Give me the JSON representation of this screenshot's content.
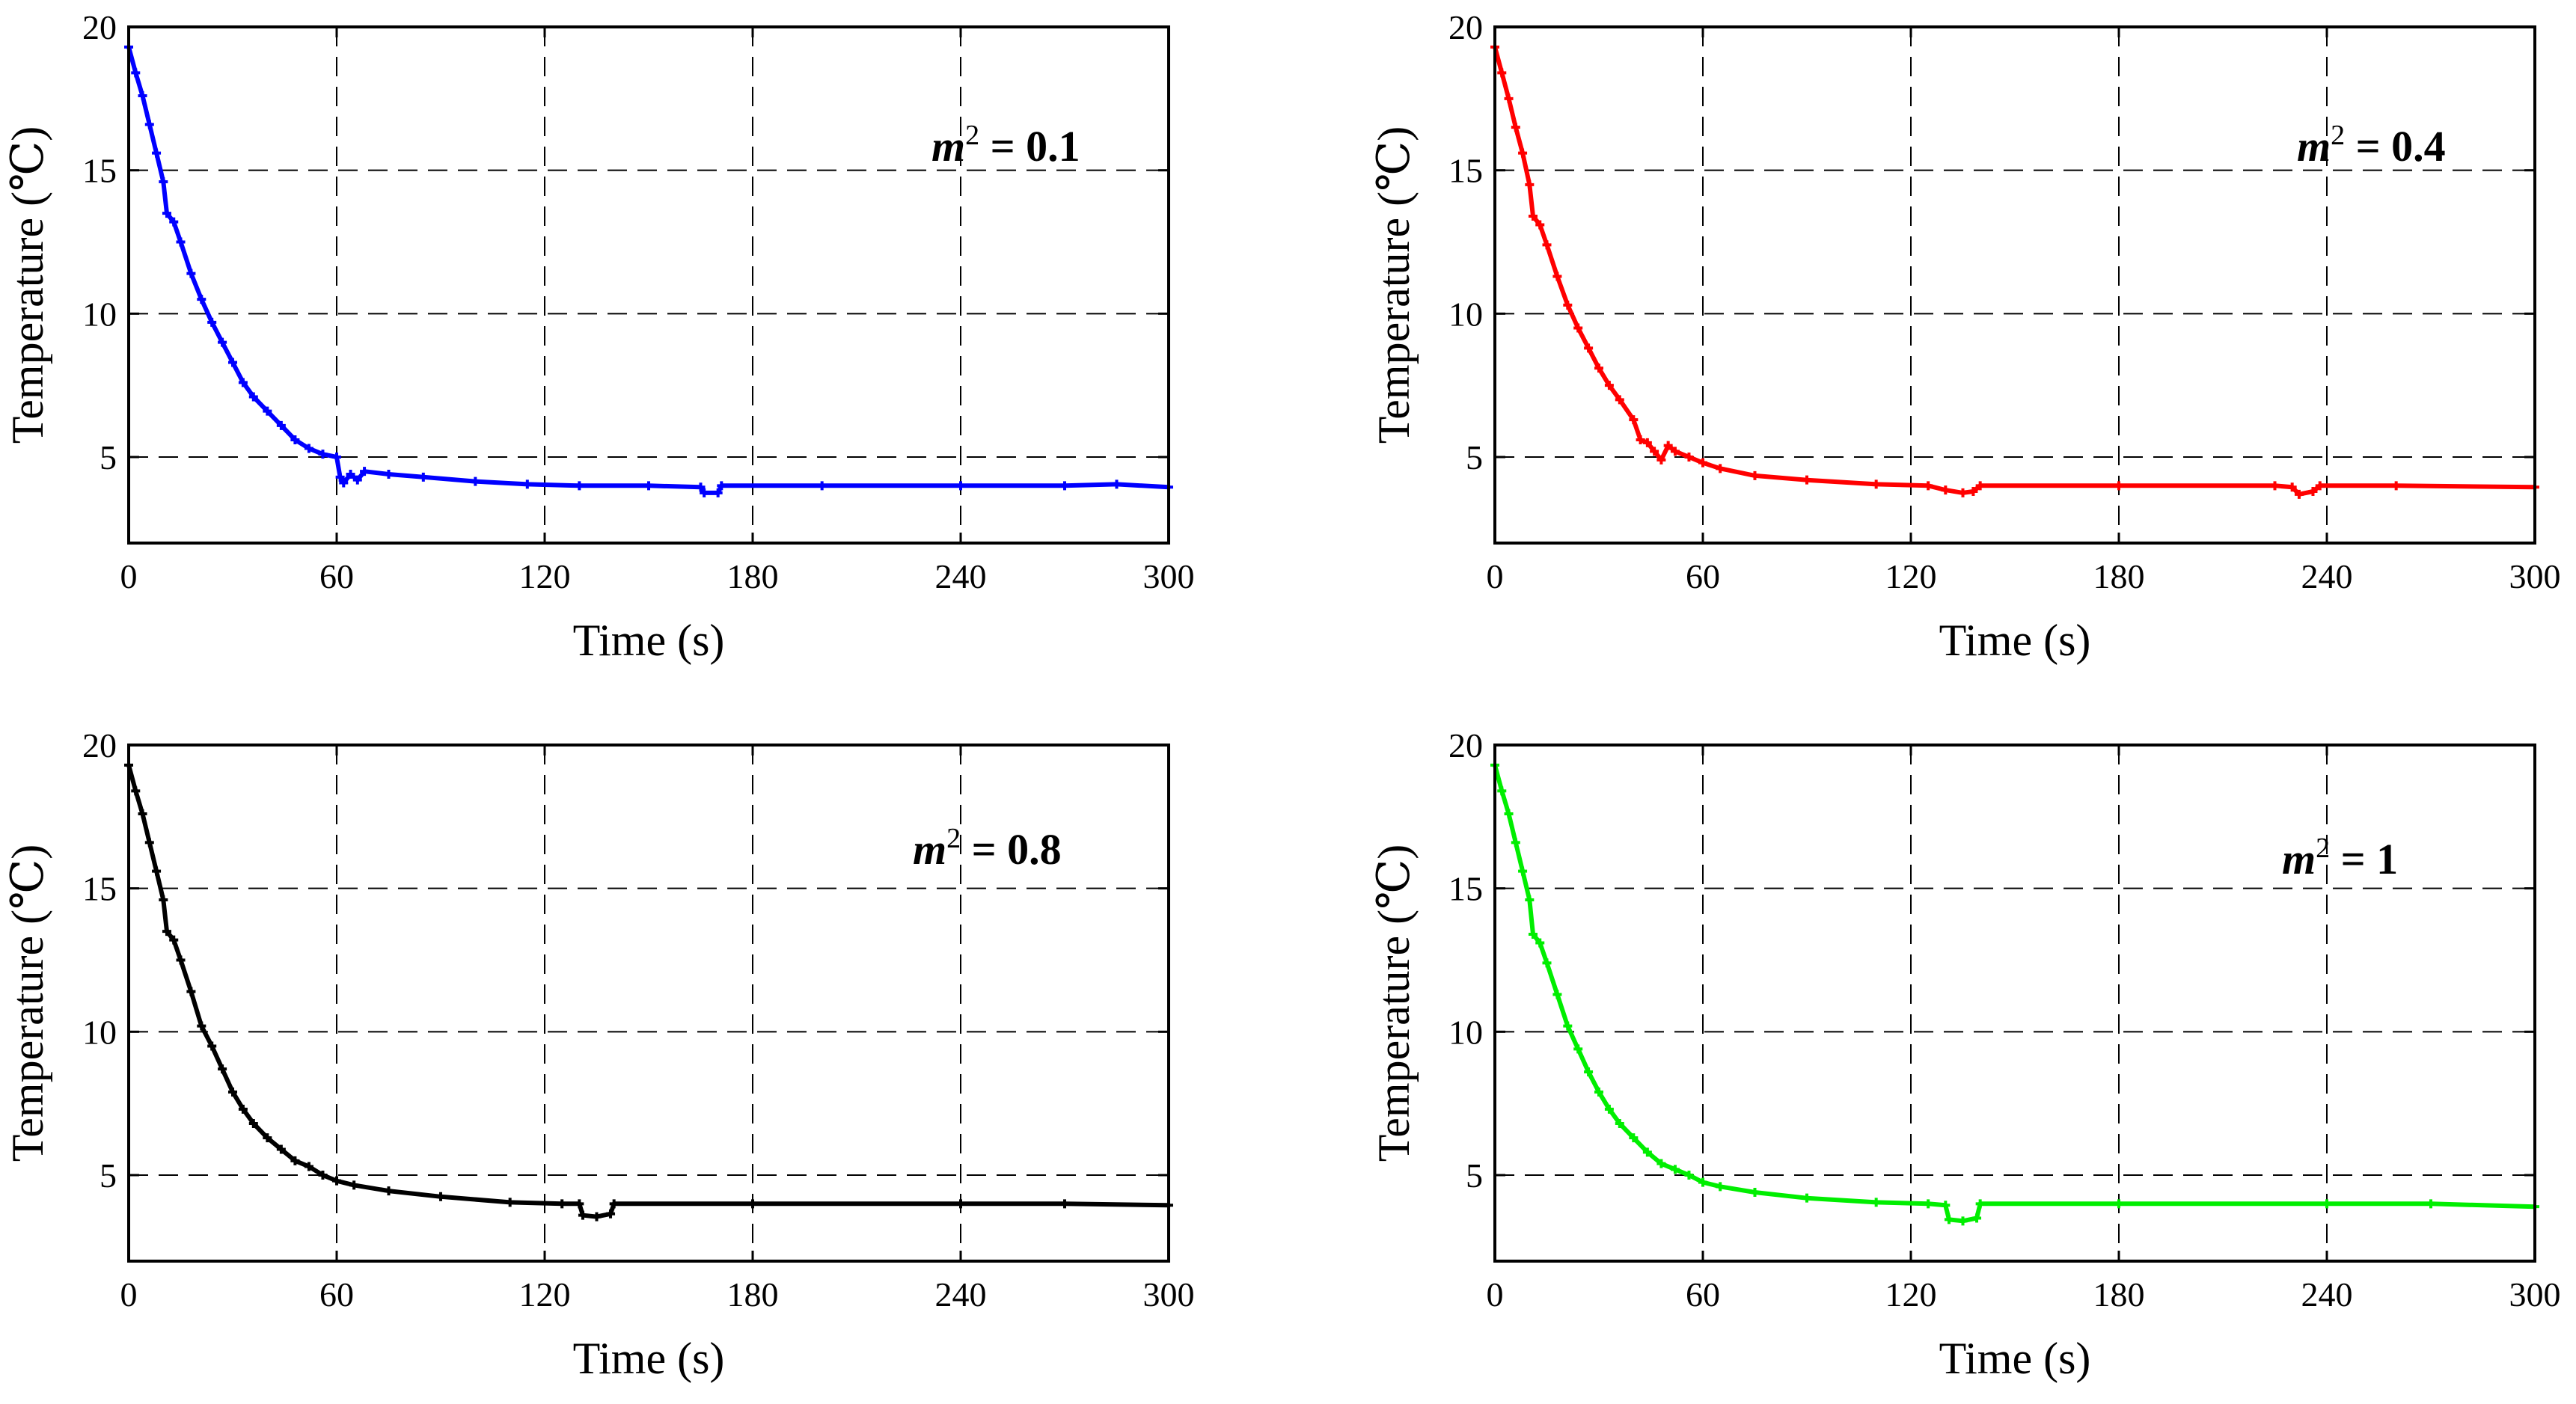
{
  "chart_data": [
    {
      "type": "line",
      "series": [
        {
          "name": "m² = 0.1",
          "color": "#0000ff",
          "points": [
            [
              0,
              19.3
            ],
            [
              2,
              18.4
            ],
            [
              4,
              17.6
            ],
            [
              6,
              16.6
            ],
            [
              8,
              15.6
            ],
            [
              10,
              14.6
            ],
            [
              11,
              13.5
            ],
            [
              13,
              13.2
            ],
            [
              15,
              12.5
            ],
            [
              18,
              11.4
            ],
            [
              21,
              10.5
            ],
            [
              24,
              9.7
            ],
            [
              27,
              9.0
            ],
            [
              30,
              8.3
            ],
            [
              33,
              7.6
            ],
            [
              36,
              7.1
            ],
            [
              40,
              6.6
            ],
            [
              44,
              6.1
            ],
            [
              48,
              5.6
            ],
            [
              52,
              5.3
            ],
            [
              56,
              5.1
            ],
            [
              60,
              5.0
            ],
            [
              61,
              4.3
            ],
            [
              62,
              4.1
            ],
            [
              64,
              4.4
            ],
            [
              66,
              4.2
            ],
            [
              68,
              4.5
            ],
            [
              75,
              4.4
            ],
            [
              85,
              4.3
            ],
            [
              100,
              4.15
            ],
            [
              115,
              4.05
            ],
            [
              130,
              4.0
            ],
            [
              150,
              4.0
            ],
            [
              165,
              3.95
            ],
            [
              166,
              3.75
            ],
            [
              170,
              3.75
            ],
            [
              171,
              4.0
            ],
            [
              200,
              4.0
            ],
            [
              240,
              4.0
            ],
            [
              270,
              4.0
            ],
            [
              285,
              4.05
            ],
            [
              300,
              3.95
            ]
          ]
        }
      ],
      "annotation": {
        "italic": "m",
        "sup": "2",
        "rest": " = 0.1"
      },
      "xlabel": "Time (s)",
      "ylabel": "Temperature (℃)",
      "xlim": [
        0,
        300
      ],
      "ylim": [
        2,
        20
      ],
      "xticks": [
        0,
        60,
        120,
        180,
        240,
        300
      ],
      "yticks": [
        5,
        10,
        15,
        20
      ],
      "grid": true
    },
    {
      "type": "line",
      "series": [
        {
          "name": "m² = 0.4",
          "color": "#ff0000",
          "points": [
            [
              0,
              19.3
            ],
            [
              2,
              18.4
            ],
            [
              4,
              17.5
            ],
            [
              6,
              16.5
            ],
            [
              8,
              15.6
            ],
            [
              10,
              14.5
            ],
            [
              11,
              13.4
            ],
            [
              13,
              13.1
            ],
            [
              15,
              12.4
            ],
            [
              18,
              11.3
            ],
            [
              21,
              10.3
            ],
            [
              24,
              9.5
            ],
            [
              27,
              8.8
            ],
            [
              30,
              8.1
            ],
            [
              33,
              7.5
            ],
            [
              36,
              7.0
            ],
            [
              40,
              6.3
            ],
            [
              42,
              5.6
            ],
            [
              44,
              5.5
            ],
            [
              46,
              5.2
            ],
            [
              48,
              4.9
            ],
            [
              50,
              5.4
            ],
            [
              52,
              5.2
            ],
            [
              56,
              5.0
            ],
            [
              60,
              4.8
            ],
            [
              65,
              4.6
            ],
            [
              75,
              4.35
            ],
            [
              90,
              4.2
            ],
            [
              110,
              4.05
            ],
            [
              125,
              4.0
            ],
            [
              130,
              3.85
            ],
            [
              135,
              3.75
            ],
            [
              138,
              3.8
            ],
            [
              140,
              4.0
            ],
            [
              180,
              4.0
            ],
            [
              225,
              4.0
            ],
            [
              230,
              3.95
            ],
            [
              232,
              3.7
            ],
            [
              236,
              3.8
            ],
            [
              238,
              4.0
            ],
            [
              260,
              4.0
            ],
            [
              300,
              3.95
            ]
          ]
        }
      ],
      "annotation": {
        "italic": "m",
        "sup": "2",
        "rest": " = 0.4"
      },
      "xlabel": "Time (s)",
      "ylabel": "Temperature (℃)",
      "xlim": [
        0,
        300
      ],
      "ylim": [
        2,
        20
      ],
      "xticks": [
        0,
        60,
        120,
        180,
        240,
        300
      ],
      "yticks": [
        5,
        10,
        15,
        20
      ],
      "grid": true
    },
    {
      "type": "line",
      "series": [
        {
          "name": "m² = 0.8",
          "color": "#000000",
          "points": [
            [
              0,
              19.3
            ],
            [
              2,
              18.4
            ],
            [
              4,
              17.6
            ],
            [
              6,
              16.6
            ],
            [
              8,
              15.6
            ],
            [
              10,
              14.6
            ],
            [
              11,
              13.5
            ],
            [
              13,
              13.2
            ],
            [
              15,
              12.5
            ],
            [
              18,
              11.4
            ],
            [
              21,
              10.2
            ],
            [
              24,
              9.5
            ],
            [
              27,
              8.7
            ],
            [
              30,
              7.9
            ],
            [
              33,
              7.3
            ],
            [
              36,
              6.8
            ],
            [
              40,
              6.3
            ],
            [
              44,
              5.9
            ],
            [
              48,
              5.5
            ],
            [
              52,
              5.3
            ],
            [
              56,
              5.0
            ],
            [
              60,
              4.8
            ],
            [
              65,
              4.65
            ],
            [
              75,
              4.45
            ],
            [
              90,
              4.25
            ],
            [
              110,
              4.05
            ],
            [
              125,
              4.0
            ],
            [
              130,
              4.0
            ],
            [
              131,
              3.6
            ],
            [
              135,
              3.55
            ],
            [
              139,
              3.65
            ],
            [
              140,
              4.0
            ],
            [
              180,
              4.0
            ],
            [
              240,
              4.0
            ],
            [
              270,
              4.0
            ],
            [
              300,
              3.95
            ]
          ]
        }
      ],
      "annotation": {
        "italic": "m",
        "sup": "2",
        "rest": " = 0.8"
      },
      "xlabel": "Time (s)",
      "ylabel": "Temperature (℃)",
      "xlim": [
        0,
        300
      ],
      "ylim": [
        2,
        20
      ],
      "xticks": [
        0,
        60,
        120,
        180,
        240,
        300
      ],
      "yticks": [
        5,
        10,
        15,
        20
      ],
      "grid": true
    },
    {
      "type": "line",
      "series": [
        {
          "name": "m² = 1",
          "color": "#00ee00",
          "points": [
            [
              0,
              19.3
            ],
            [
              2,
              18.4
            ],
            [
              4,
              17.6
            ],
            [
              6,
              16.6
            ],
            [
              8,
              15.6
            ],
            [
              10,
              14.6
            ],
            [
              11,
              13.4
            ],
            [
              13,
              13.1
            ],
            [
              15,
              12.4
            ],
            [
              18,
              11.3
            ],
            [
              21,
              10.2
            ],
            [
              24,
              9.4
            ],
            [
              27,
              8.6
            ],
            [
              30,
              7.9
            ],
            [
              33,
              7.3
            ],
            [
              36,
              6.8
            ],
            [
              40,
              6.3
            ],
            [
              44,
              5.8
            ],
            [
              48,
              5.4
            ],
            [
              52,
              5.2
            ],
            [
              56,
              5.0
            ],
            [
              60,
              4.75
            ],
            [
              65,
              4.6
            ],
            [
              75,
              4.4
            ],
            [
              90,
              4.2
            ],
            [
              110,
              4.05
            ],
            [
              125,
              4.0
            ],
            [
              130,
              3.95
            ],
            [
              131,
              3.45
            ],
            [
              135,
              3.4
            ],
            [
              139,
              3.5
            ],
            [
              140,
              4.0
            ],
            [
              180,
              4.0
            ],
            [
              240,
              4.0
            ],
            [
              270,
              4.0
            ],
            [
              300,
              3.9
            ]
          ]
        }
      ],
      "annotation": {
        "italic": "m",
        "sup": "2",
        "rest": " = 1"
      },
      "xlabel": "Time (s)",
      "ylabel": "Temperature (℃)",
      "xlim": [
        0,
        300
      ],
      "ylim": [
        2,
        20
      ],
      "xticks": [
        0,
        60,
        120,
        180,
        240,
        300
      ],
      "yticks": [
        5,
        10,
        15,
        20
      ],
      "grid": true
    }
  ]
}
